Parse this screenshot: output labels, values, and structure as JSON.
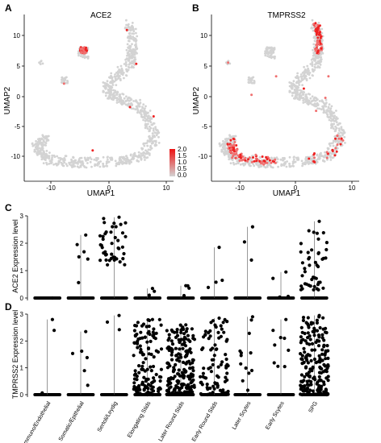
{
  "panels": {
    "A": {
      "letter": "A",
      "title": "ACE2",
      "xlabel": "UMAP1",
      "ylabel": "UMAP2",
      "x_ticks": [
        "-10",
        "0",
        "10"
      ],
      "y_ticks": [
        "10",
        "5",
        "0",
        "-5",
        "-10"
      ],
      "legend_ticks": [
        "2.0",
        "1.5",
        "1.0",
        "0.5",
        "0.0"
      ]
    },
    "B": {
      "letter": "B",
      "title": "TMPRSS2",
      "xlabel": "UMAP1",
      "ylabel": "UMAP2",
      "x_ticks": [
        "-10",
        "0",
        "10"
      ],
      "y_ticks": [
        "10",
        "5",
        "0",
        "-5",
        "-10"
      ]
    },
    "C": {
      "letter": "C",
      "ylabel": "ACE2 Expression level"
    },
    "D": {
      "letter": "D",
      "ylabel": "TMPRSS2 Expression level"
    }
  },
  "colors": {
    "gray": "#d3d3d3",
    "red": "#ee2222",
    "dark": "#000000"
  },
  "chart_data": [
    {
      "type": "scatter",
      "title": "ACE2",
      "xlabel": "UMAP1",
      "ylabel": "UMAP2",
      "xlim": [
        -13,
        11
      ],
      "ylim": [
        -13,
        14
      ],
      "color_scale": [
        0.0,
        2.0
      ],
      "legend": "right"
    },
    {
      "type": "scatter",
      "title": "TMPRSS2",
      "xlabel": "UMAP1",
      "ylabel": "UMAP2",
      "xlim": [
        -13,
        11
      ],
      "ylim": [
        -13,
        14
      ]
    },
    {
      "type": "scatter",
      "ylabel": "ACE2 Expression level",
      "ylim": [
        0,
        3
      ],
      "y_ticks": [
        0,
        1,
        2,
        3
      ],
      "categories": [
        "Immuno/Endothelial",
        "Somatic/Epithelial",
        "Sertoli/Leydig",
        "Elongating Stids",
        "Later Round Stids",
        "Early Round Stids",
        "Later Scytes",
        "Early Scytes",
        "SPG"
      ],
      "max_values": [
        0.0,
        2.3,
        2.95,
        0.35,
        0.45,
        1.85,
        2.6,
        0.95,
        2.8
      ],
      "n_nonzero": [
        0,
        5,
        42,
        2,
        3,
        3,
        2,
        3,
        45
      ]
    },
    {
      "type": "scatter",
      "ylabel": "TMPRSS2 Expression level",
      "ylim": [
        0,
        3
      ],
      "y_ticks": [
        0,
        1,
        2,
        3
      ],
      "categories": [
        "Immuno/Endothelial",
        "Somatic/Epithelial",
        "Sertoli/Leydig",
        "Elongating Stids",
        "Later Round Stids",
        "Early Round Stids",
        "Later Scytes",
        "Early Scytes",
        "SPG"
      ],
      "max_values": [
        2.8,
        2.35,
        2.95,
        2.8,
        2.6,
        2.85,
        2.9,
        2.8,
        2.95
      ],
      "n_nonzero": [
        2,
        5,
        2,
        130,
        200,
        90,
        12,
        8,
        200
      ]
    }
  ]
}
